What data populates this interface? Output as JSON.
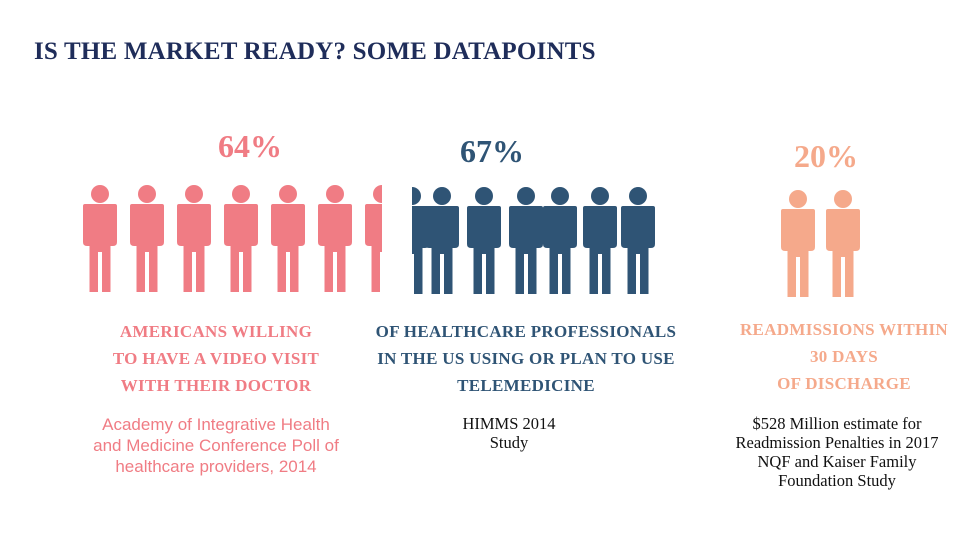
{
  "title": "IS THE MARKET READY? SOME DATAPOINTS",
  "colors": {
    "title": "#1f2d5a",
    "pink": "#f07c84",
    "navy": "#2f5475",
    "peach": "#f5a98b",
    "source_text": "#111111"
  },
  "stats": [
    {
      "percent": "64%",
      "icon": "person-icon",
      "caption": [
        "AMERICANS WILLING",
        "TO HAVE A VIDEO VISIT",
        "WITH THEIR DOCTOR"
      ],
      "source": [
        "Academy of Integrative Health",
        "and Medicine Conference Poll of",
        "healthcare providers, 2014"
      ]
    },
    {
      "percent": "67%",
      "icon": "person-icon",
      "caption": [
        "OF HEALTHCARE PROFESSIONALS",
        "IN THE US USING OR PLAN TO USE",
        "TELEMEDICINE"
      ],
      "source": [
        "HIMMS 2014",
        "Study"
      ]
    },
    {
      "percent": "20%",
      "icon": "person-icon",
      "caption": [
        "READMISSIONS WITHIN",
        "30 DAYS",
        "OF DISCHARGE"
      ],
      "source": [
        "$528 Million estimate for",
        "Readmission Penalties in 2017",
        "NQF and Kaiser Family",
        "Foundation Study"
      ]
    }
  ]
}
